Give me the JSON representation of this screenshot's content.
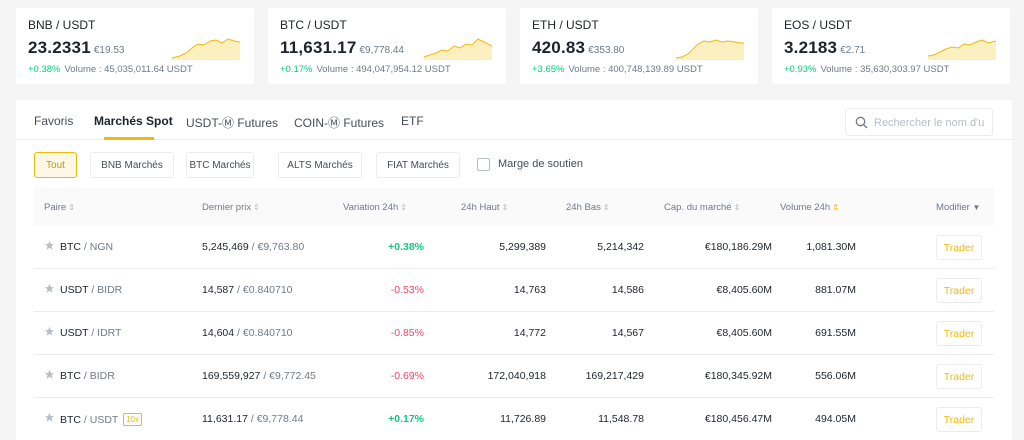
{
  "tickers": [
    {
      "pair": "BNB / USDT",
      "price": "23.2331",
      "fiat": "€19.53",
      "change": "+0.38%",
      "volume": "Volume : 45,035,011.64 USDT"
    },
    {
      "pair": "BTC / USDT",
      "price": "11,631.17",
      "fiat": "€9,778.44",
      "change": "+0.17%",
      "volume": "Volume : 494,047,954.12 USDT"
    },
    {
      "pair": "ETH / USDT",
      "price": "420.83",
      "fiat": "€353.80",
      "change": "+3.65%",
      "volume": "Volume : 400,748,139.89 USDT"
    },
    {
      "pair": "EOS / USDT",
      "price": "3.2183",
      "fiat": "€2.71",
      "change": "+0.93%",
      "volume": "Volume : 35,630,303.97 USDT"
    }
  ],
  "tabs": [
    "Favoris",
    "Marchés Spot",
    "USDT-Ⓜ Futures",
    "COIN-Ⓜ Futures",
    "ETF"
  ],
  "active_tab": "Marchés Spot",
  "search": {
    "placeholder": "Rechercher le nom d'u"
  },
  "filters": [
    "Tout",
    "BNB Marchés",
    "BTC Marchés",
    "ALTS Marchés",
    "FIAT Marchés"
  ],
  "active_filter": "Tout",
  "margin_label": "Marge de soutien",
  "columns": {
    "pair": "Paire",
    "last_price": "Dernier prix",
    "change": "Variation 24h",
    "high": "24h Haut",
    "low": "24h Bas",
    "market_cap": "Cap. du marché",
    "volume": "Volume 24h",
    "modify": "Modifier"
  },
  "sort_icon": "⇕",
  "modify_caret": "▼",
  "star_color": "#b7bdc6",
  "rows": [
    {
      "base": "BTC",
      "quote": "/ NGN",
      "leverage": "",
      "price": "5,245,469",
      "fiat": "/ €9,763.80",
      "change": "+0.38%",
      "high": "5,299,389",
      "low": "5,214,342",
      "cap": "€180,186.29M",
      "volume": "1,081.30M",
      "action": "Trader"
    },
    {
      "base": "USDT",
      "quote": "/ BIDR",
      "leverage": "",
      "price": "14,587",
      "fiat": "/ €0.840710",
      "change": "-0.53%",
      "high": "14,763",
      "low": "14,586",
      "cap": "€8,405.60M",
      "volume": "881.07M",
      "action": "Trader"
    },
    {
      "base": "USDT",
      "quote": "/ IDRT",
      "leverage": "",
      "price": "14,604",
      "fiat": "/ €0.840710",
      "change": "-0.85%",
      "high": "14,772",
      "low": "14,567",
      "cap": "€8,405.60M",
      "volume": "691.55M",
      "action": "Trader"
    },
    {
      "base": "BTC",
      "quote": "/ BIDR",
      "leverage": "",
      "price": "169,559,927",
      "fiat": "/ €9,772.45",
      "change": "-0.69%",
      "high": "172,040,918",
      "low": "169,217,429",
      "cap": "€180,345.92M",
      "volume": "556.06M",
      "action": "Trader"
    },
    {
      "base": "BTC",
      "quote": "/ USDT",
      "leverage": "10x",
      "price": "11,631.17",
      "fiat": "/ €9,778.44",
      "change": "+0.17%",
      "high": "11,726.89",
      "low": "11,548.78",
      "cap": "€180,456.47M",
      "volume": "494.05M",
      "action": "Trader"
    }
  ],
  "colors": {
    "accent": "#f0b90b",
    "positive": "#0ecb81",
    "negative": "#f6465d"
  }
}
